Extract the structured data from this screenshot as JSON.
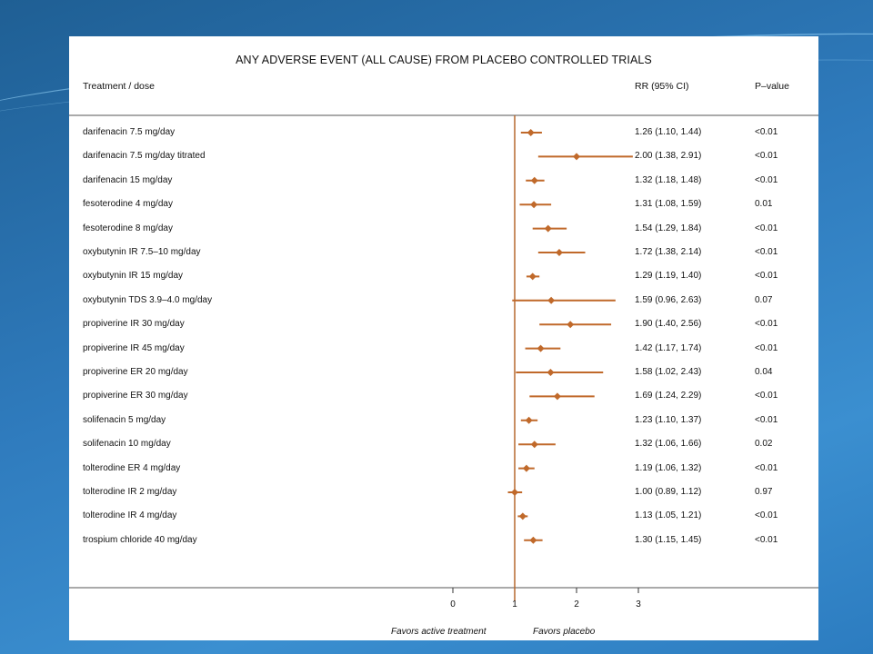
{
  "chart_data": {
    "type": "forest",
    "title": "ANY ADVERSE EVENT (ALL CAUSE) FROM PLACEBO CONTROLLED TRIALS",
    "columns": {
      "treatment": "Treatment / dose",
      "rr": "RR (95% CI)",
      "p": "P–value"
    },
    "rows": [
      {
        "label": "darifenacin 7.5 mg/day",
        "rr_text": "1.26 (1.10, 1.44)",
        "p": "<0.01",
        "rr": 1.26,
        "lo": 1.1,
        "hi": 1.44
      },
      {
        "label": "darifenacin 7.5 mg/day titrated",
        "rr_text": "2.00 (1.38, 2.91)",
        "p": "<0.01",
        "rr": 2.0,
        "lo": 1.38,
        "hi": 2.91
      },
      {
        "label": "darifenacin 15 mg/day",
        "rr_text": "1.32 (1.18, 1.48)",
        "p": "<0.01",
        "rr": 1.32,
        "lo": 1.18,
        "hi": 1.48
      },
      {
        "label": "fesoterodine 4 mg/day",
        "rr_text": "1.31 (1.08, 1.59)",
        "p": "0.01",
        "rr": 1.31,
        "lo": 1.08,
        "hi": 1.59
      },
      {
        "label": "fesoterodine 8 mg/day",
        "rr_text": "1.54 (1.29, 1.84)",
        "p": "<0.01",
        "rr": 1.54,
        "lo": 1.29,
        "hi": 1.84
      },
      {
        "label": "oxybutynin IR 7.5–10 mg/day",
        "rr_text": "1.72 (1.38, 2.14)",
        "p": "<0.01",
        "rr": 1.72,
        "lo": 1.38,
        "hi": 2.14
      },
      {
        "label": "oxybutynin IR 15 mg/day",
        "rr_text": "1.29 (1.19, 1.40)",
        "p": "<0.01",
        "rr": 1.29,
        "lo": 1.19,
        "hi": 1.4
      },
      {
        "label": "oxybutynin TDS 3.9–4.0 mg/day",
        "rr_text": "1.59 (0.96, 2.63)",
        "p": "0.07",
        "rr": 1.59,
        "lo": 0.96,
        "hi": 2.63
      },
      {
        "label": "propiverine IR 30 mg/day",
        "rr_text": "1.90 (1.40, 2.56)",
        "p": "<0.01",
        "rr": 1.9,
        "lo": 1.4,
        "hi": 2.56
      },
      {
        "label": "propiverine IR 45 mg/day",
        "rr_text": "1.42 (1.17, 1.74)",
        "p": "<0.01",
        "rr": 1.42,
        "lo": 1.17,
        "hi": 1.74
      },
      {
        "label": "propiverine ER 20 mg/day",
        "rr_text": "1.58 (1.02, 2.43)",
        "p": "0.04",
        "rr": 1.58,
        "lo": 1.02,
        "hi": 2.43
      },
      {
        "label": "propiverine ER 30 mg/day",
        "rr_text": "1.69 (1.24, 2.29)",
        "p": "<0.01",
        "rr": 1.69,
        "lo": 1.24,
        "hi": 2.29
      },
      {
        "label": "solifenacin 5 mg/day",
        "rr_text": "1.23 (1.10, 1.37)",
        "p": "<0.01",
        "rr": 1.23,
        "lo": 1.1,
        "hi": 1.37
      },
      {
        "label": "solifenacin 10 mg/day",
        "rr_text": "1.32 (1.06, 1.66)",
        "p": "0.02",
        "rr": 1.32,
        "lo": 1.06,
        "hi": 1.66
      },
      {
        "label": "tolterodine ER 4 mg/day",
        "rr_text": "1.19 (1.06, 1.32)",
        "p": "<0.01",
        "rr": 1.19,
        "lo": 1.06,
        "hi": 1.32
      },
      {
        "label": "tolterodine IR 2 mg/day",
        "rr_text": "1.00 (0.89, 1.12)",
        "p": "0.97",
        "rr": 1.0,
        "lo": 0.89,
        "hi": 1.12
      },
      {
        "label": "tolterodine IR 4 mg/day",
        "rr_text": "1.13 (1.05, 1.21)",
        "p": "<0.01",
        "rr": 1.13,
        "lo": 1.05,
        "hi": 1.21
      },
      {
        "label": "trospium chloride 40 mg/day",
        "rr_text": "1.30 (1.15, 1.45)",
        "p": "<0.01",
        "rr": 1.3,
        "lo": 1.15,
        "hi": 1.45
      }
    ],
    "x_ticks": [
      0,
      1,
      2,
      3
    ],
    "xlim": [
      0,
      3
    ],
    "reference_line": 1,
    "favor_left": "Favors active treatment",
    "favor_right": "Favors placebo",
    "marker_color": "#c0692a"
  }
}
